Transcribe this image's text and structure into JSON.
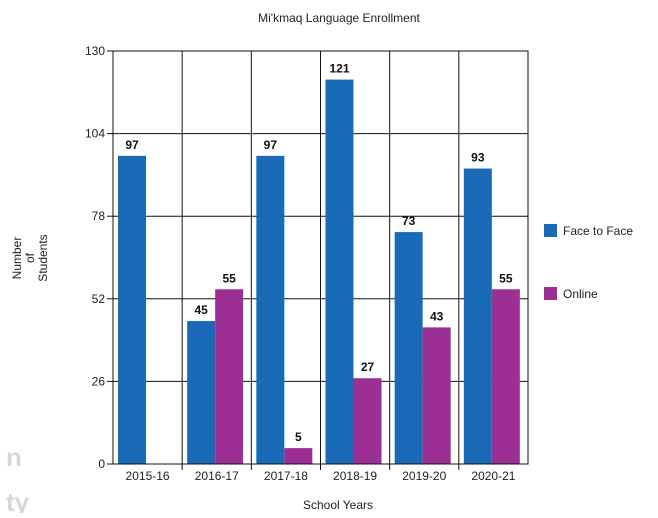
{
  "chart_data": {
    "type": "bar",
    "title": "Mi'kmaq Language Enrollment",
    "xlabel": "School Years",
    "ylabel": "Number of Students",
    "ylim": [
      0,
      130
    ],
    "yticks": [
      0,
      26,
      52,
      78,
      104,
      130
    ],
    "grid": true,
    "legend_position": "right",
    "categories": [
      "2015-16",
      "2016-17",
      "2017-18",
      "2018-19",
      "2019-20",
      "2020-21"
    ],
    "series": [
      {
        "name": "Face to Face",
        "color": "#1a6ab8",
        "values": [
          97,
          45,
          97,
          121,
          73,
          93
        ]
      },
      {
        "name": "Online",
        "color": "#9c2f93",
        "values": [
          null,
          55,
          5,
          27,
          43,
          55
        ]
      }
    ]
  },
  "watermark": {
    "line1": "n",
    "line2": "ty"
  }
}
